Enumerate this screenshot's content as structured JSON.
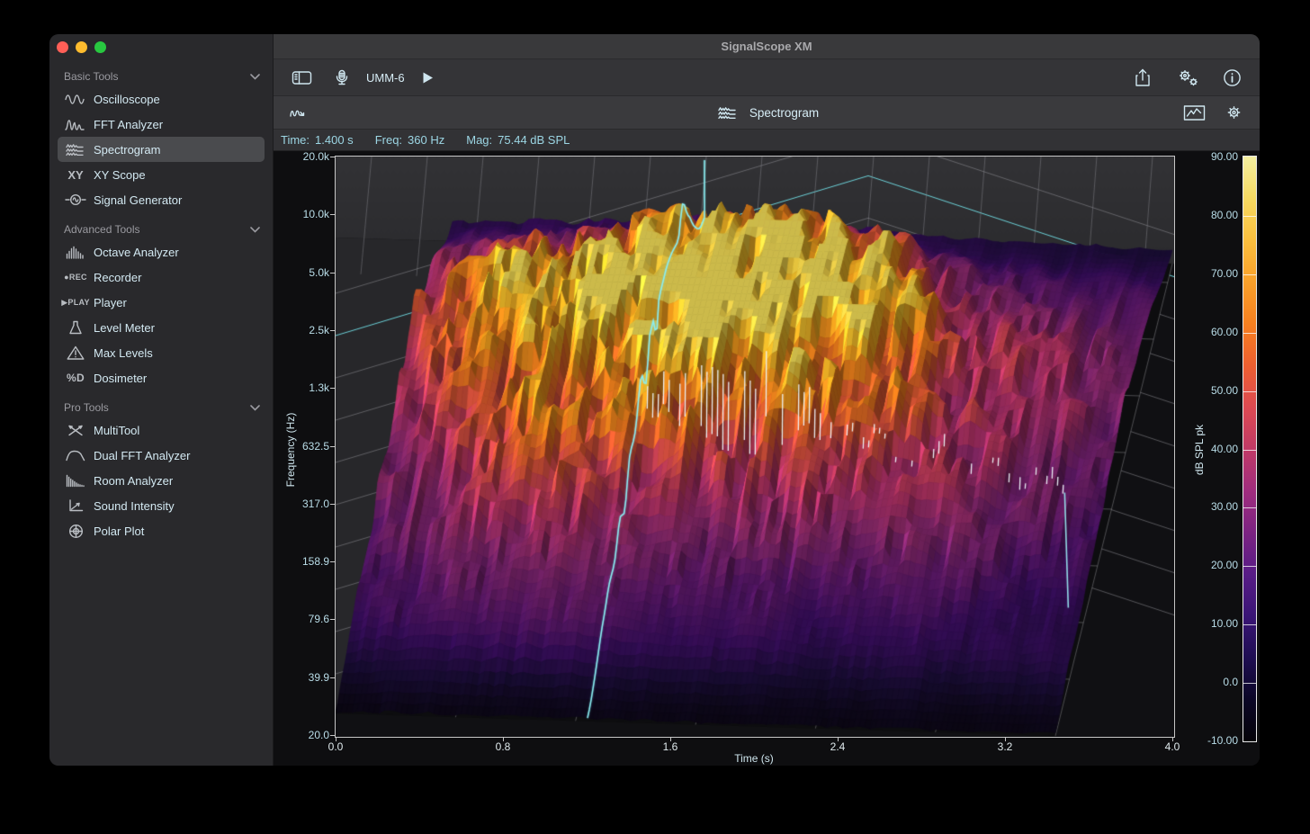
{
  "window_title": "SignalScope XM",
  "sidebar": {
    "sections": [
      {
        "label": "Basic Tools",
        "items": [
          {
            "label": "Oscilloscope",
            "icon": "oscilloscope-icon"
          },
          {
            "label": "FFT Analyzer",
            "icon": "fft-analyzer-icon"
          },
          {
            "label": "Spectrogram",
            "icon": "spectrogram-icon",
            "selected": true
          },
          {
            "label": "XY Scope",
            "icon": "xy-scope-icon"
          },
          {
            "label": "Signal Generator",
            "icon": "signal-generator-icon"
          }
        ]
      },
      {
        "label": "Advanced Tools",
        "items": [
          {
            "label": "Octave Analyzer",
            "icon": "octave-analyzer-icon"
          },
          {
            "label": "Recorder",
            "icon": "recorder-icon"
          },
          {
            "label": "Player",
            "icon": "player-icon"
          },
          {
            "label": "Level Meter",
            "icon": "level-meter-icon"
          },
          {
            "label": "Max Levels",
            "icon": "max-levels-icon"
          },
          {
            "label": "Dosimeter",
            "icon": "dosimeter-icon"
          }
        ]
      },
      {
        "label": "Pro Tools",
        "items": [
          {
            "label": "MultiTool",
            "icon": "multitool-icon"
          },
          {
            "label": "Dual FFT Analyzer",
            "icon": "dual-fft-icon"
          },
          {
            "label": "Room Analyzer",
            "icon": "room-analyzer-icon"
          },
          {
            "label": "Sound Intensity",
            "icon": "sound-intensity-icon"
          },
          {
            "label": "Polar Plot",
            "icon": "polar-plot-icon"
          }
        ]
      }
    ]
  },
  "toolbar": {
    "device_label": "UMM-6",
    "left_icons": [
      "sidebar-toggle-icon",
      "microphone-icon"
    ],
    "play_icon": "play-icon",
    "right_icons": [
      "share-icon",
      "settings-gears-icon",
      "info-icon"
    ]
  },
  "subtoolbar": {
    "left_icon": "signal-flow-icon",
    "title_icon": "spectrogram-icon",
    "title": "Spectrogram",
    "right_icons": [
      "chart-box-icon",
      "gear-icon"
    ]
  },
  "status": {
    "items": [
      {
        "label": "Time:",
        "value": "1.400 s"
      },
      {
        "label": "Freq:",
        "value": "360 Hz"
      },
      {
        "label": "Mag:",
        "value": "75.44 dB SPL"
      }
    ]
  },
  "plot": {
    "freq_axis": {
      "title": "Frequency (Hz)",
      "ticks": [
        "20.0k",
        "10.0k",
        "5.0k",
        "2.5k",
        "1.3k",
        "632.5",
        "317.0",
        "158.9",
        "79.6",
        "39.9",
        "20.0"
      ]
    },
    "time_axis": {
      "title": "Time (s)",
      "ticks": [
        "0.0",
        "0.8",
        "1.6",
        "2.4",
        "3.2",
        "4.0"
      ]
    },
    "colorbar": {
      "title": "dB SPL pk",
      "ticks": [
        "90.00",
        "80.00",
        "70.00",
        "60.00",
        "50.00",
        "40.00",
        "30.00",
        "20.00",
        "10.00",
        "0.0",
        "-10.00"
      ],
      "gradient": [
        "#f4efa1",
        "#f7da62",
        "#fbbf3e",
        "#f9a02a",
        "#f68020",
        "#ee5f30",
        "#dd4a52",
        "#c03a66",
        "#a02d7e",
        "#7c2382",
        "#581c86",
        "#3a1576",
        "#1f0e52",
        "#0b0626",
        "#050309"
      ]
    },
    "accent_cyan": "#9cd6e4",
    "cursor_color": "#8beef2"
  },
  "chart_data": {
    "type": "heatmap",
    "subtype": "3d_waterfall_spectrogram",
    "title": "Spectrogram",
    "x_axis": {
      "label": "Time (s)",
      "range": [
        0,
        4
      ],
      "ticks": [
        0,
        0.8,
        1.6,
        2.4,
        3.2,
        4.0
      ]
    },
    "y_axis": {
      "label": "Frequency (Hz)",
      "scale": "log",
      "range": [
        20,
        20000
      ],
      "tick_labels": [
        "20.0k",
        "10.0k",
        "5.0k",
        "2.5k",
        "1.3k",
        "632.5",
        "317.0",
        "158.9",
        "79.6",
        "39.9",
        "20.0"
      ]
    },
    "z_axis": {
      "label": "dB SPL pk",
      "range": [
        -10,
        90
      ],
      "ticks": [
        90,
        80,
        70,
        60,
        50,
        40,
        30,
        20,
        10,
        0,
        -10
      ]
    },
    "cursor": {
      "time_s": 1.4,
      "freq_hz": 360,
      "magnitude_db_spl": 75.44
    },
    "colormap": "magma",
    "legend_position": "right-colorbar",
    "grid": true
  }
}
